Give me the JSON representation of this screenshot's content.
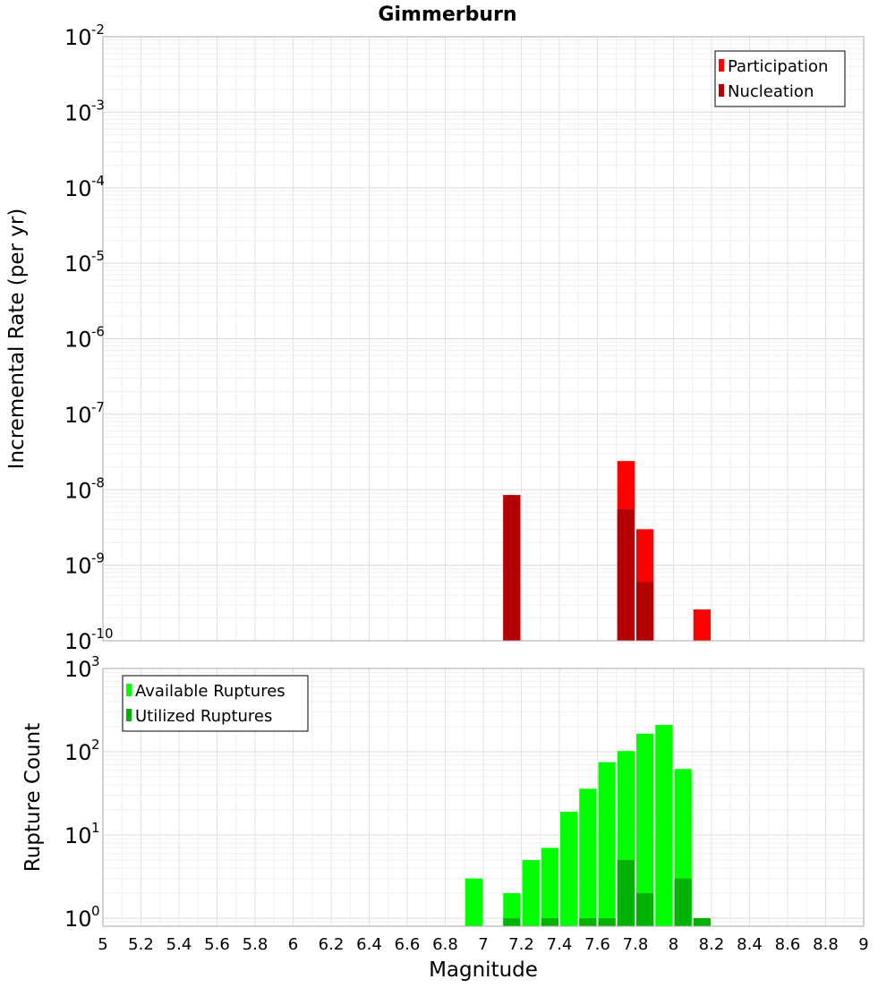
{
  "chart_data": [
    {
      "type": "bar",
      "title": "Gimmerburn",
      "xlabel": "",
      "ylabel": "Incremental Rate (per yr)",
      "yscale": "log",
      "ylim": [
        1e-10,
        0.01
      ],
      "xlim": [
        5,
        9
      ],
      "bar_width": 0.1,
      "grid": true,
      "legend_placement": "top-right",
      "series": [
        {
          "name": "Participation",
          "color": "#ff0000",
          "x": [
            7.15,
            7.75,
            7.85,
            8.15
          ],
          "values": [
            8.5e-09,
            2.4e-08,
            3e-09,
            2.6e-10
          ]
        },
        {
          "name": "Nucleation",
          "color": "#b30000",
          "x": [
            7.15,
            7.75,
            7.85
          ],
          "values": [
            8.5e-09,
            5.5e-09,
            6e-10
          ]
        }
      ]
    },
    {
      "type": "bar",
      "title": "",
      "xlabel": "Magnitude",
      "ylabel": "Rupture Count",
      "yscale": "log",
      "ylim": [
        0.8,
        1000
      ],
      "xlim": [
        5,
        9
      ],
      "bar_width": 0.1,
      "grid": true,
      "legend_placement": "top-left",
      "x_ticks": [
        "5",
        "5.2",
        "5.4",
        "5.6",
        "5.8",
        "6",
        "6.2",
        "6.4",
        "6.6",
        "6.8",
        "7",
        "7.2",
        "7.4",
        "7.6",
        "7.8",
        "8",
        "8.2",
        "8.4",
        "8.6",
        "8.8",
        "9"
      ],
      "series": [
        {
          "name": "Available Ruptures",
          "color": "#00ff00",
          "x": [
            6.95,
            7.15,
            7.25,
            7.35,
            7.45,
            7.55,
            7.65,
            7.75,
            7.85,
            7.95,
            8.05
          ],
          "values": [
            3,
            2,
            5,
            7,
            19,
            36,
            75,
            102,
            165,
            210,
            62
          ]
        },
        {
          "name": "Utilized Ruptures",
          "color": "#00b300",
          "x": [
            7.15,
            7.35,
            7.55,
            7.65,
            7.75,
            7.85,
            8.05,
            8.15
          ],
          "values": [
            1,
            1,
            1,
            1,
            5,
            2,
            3,
            1
          ]
        }
      ]
    }
  ]
}
